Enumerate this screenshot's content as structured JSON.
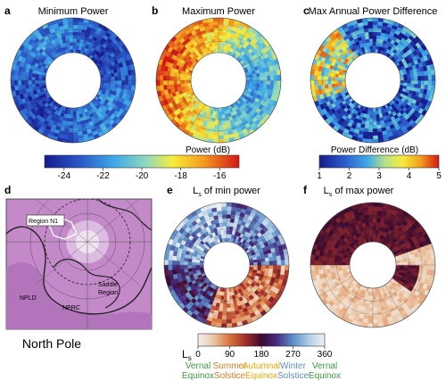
{
  "chart_data": [
    {
      "type": "heatmap",
      "panel_letter": "a",
      "title": "Minimum Power",
      "projection": "polar-annulus",
      "colorbar": "power"
    },
    {
      "type": "heatmap",
      "panel_letter": "b",
      "title": "Maximum Power",
      "projection": "polar-annulus",
      "colorbar": "power"
    },
    {
      "type": "heatmap",
      "panel_letter": "c",
      "title": "Max Annual Power Difference",
      "projection": "polar-annulus",
      "colorbar": "difference"
    },
    {
      "type": "map",
      "panel_letter": "d",
      "caption": "North Pole",
      "labels": [
        "Region N1",
        "NPLD",
        "NPRC",
        "Saddle",
        "Region"
      ]
    },
    {
      "type": "heatmap",
      "panel_letter": "e",
      "title_main": "L",
      "title_sub": "s",
      "title_rest": " of min power",
      "projection": "polar-annulus",
      "colorbar": "ls"
    },
    {
      "type": "heatmap",
      "panel_letter": "f",
      "title_main": "L",
      "title_sub": "s",
      "title_rest": " of max power",
      "projection": "polar-annulus",
      "colorbar": "ls"
    }
  ],
  "colorbars": {
    "power": {
      "label": "Power (dB)",
      "range": [
        -25,
        -15
      ],
      "ticks": [
        "-24",
        "-22",
        "-20",
        "-18",
        "-16"
      ],
      "tick_values": [
        -24,
        -22,
        -20,
        -18,
        -16
      ]
    },
    "difference": {
      "label": "Power Difference (dB)",
      "range": [
        1,
        5
      ],
      "ticks": [
        "1",
        "2",
        "3",
        "4",
        "5"
      ],
      "tick_values": [
        1,
        2,
        3,
        4,
        5
      ]
    },
    "ls": {
      "label_main": "L",
      "label_sub": "s",
      "range": [
        0,
        360
      ],
      "ticks": [
        "0",
        "90",
        "180",
        "270",
        "360"
      ],
      "tick_values": [
        0,
        90,
        180,
        270,
        360
      ],
      "seasons": [
        {
          "line1": "Vernal",
          "line2": "Equinox",
          "ls": 0,
          "color": "#3c9b3c"
        },
        {
          "line1": "Summer",
          "line2": "Solstice",
          "ls": 90,
          "color": "#e07a22"
        },
        {
          "line1": "Autumnal",
          "line2": "Equinox",
          "ls": 180,
          "color": "#e8a800"
        },
        {
          "line1": "Winter",
          "line2": "Solstice",
          "ls": 270,
          "color": "#5b8fc9"
        },
        {
          "line1": "Vernal",
          "line2": "Equinox",
          "ls": 360,
          "color": "#3c9b3c"
        }
      ]
    }
  }
}
